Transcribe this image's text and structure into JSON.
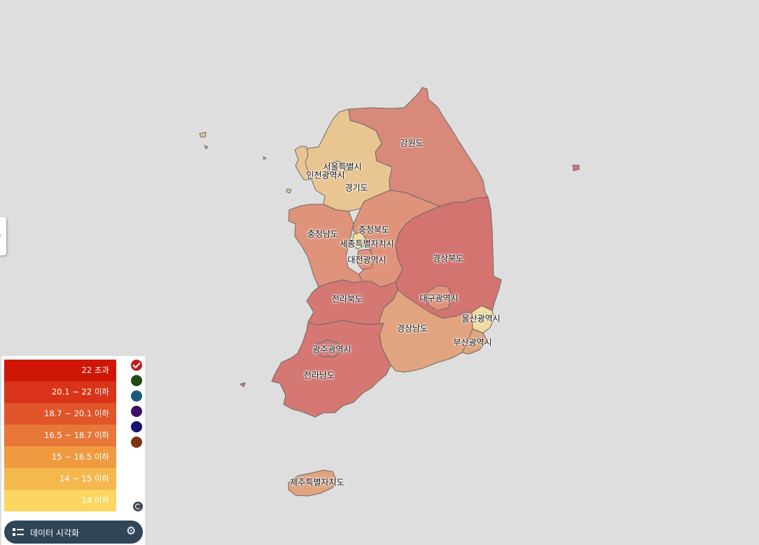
{
  "map": {
    "regions": [
      {
        "id": "gangwon",
        "label": "강원도",
        "color": "#d8897a"
      },
      {
        "id": "gyeonggi",
        "label": "경기도",
        "color": "#e9c592"
      },
      {
        "id": "seoul",
        "label": "서울특별시",
        "color": "#e9c592"
      },
      {
        "id": "incheon",
        "label": "인천광역시",
        "color": "#e9c592"
      },
      {
        "id": "chungbuk",
        "label": "충청북도",
        "color": "#e0937b"
      },
      {
        "id": "chungnam",
        "label": "충청남도",
        "color": "#e0937b"
      },
      {
        "id": "sejong",
        "label": "세종특별자치시",
        "color": "#efdc98"
      },
      {
        "id": "daejeon",
        "label": "대전광역시",
        "color": "#e0937b"
      },
      {
        "id": "gyeongbuk",
        "label": "경상북도",
        "color": "#d47470"
      },
      {
        "id": "daegu",
        "label": "대구광역시",
        "color": "#e0937b"
      },
      {
        "id": "ulsan",
        "label": "울산광역시",
        "color": "#f0dca0"
      },
      {
        "id": "busan",
        "label": "부산광역시",
        "color": "#e1a47f"
      },
      {
        "id": "gyeongnam",
        "label": "경상남도",
        "color": "#e1a47f"
      },
      {
        "id": "jeonbuk",
        "label": "전라북도",
        "color": "#d57873"
      },
      {
        "id": "jeonnam",
        "label": "전라남도",
        "color": "#d57873"
      },
      {
        "id": "gwangju",
        "label": "광주광역시",
        "color": "#d57873"
      },
      {
        "id": "jeju",
        "label": "제주특별자치도",
        "color": "#e1a47f"
      }
    ]
  },
  "side_tab": {
    "arrow": "›"
  },
  "legend": {
    "items": [
      {
        "label": "22 초과",
        "color": "#cf1706"
      },
      {
        "label": "20.1 ~ 22 이하",
        "color": "#d93419"
      },
      {
        "label": "18.7 ~ 20.1 이하",
        "color": "#e0552a"
      },
      {
        "label": "16.5 ~ 18.7 이하",
        "color": "#e8783a"
      },
      {
        "label": "15 ~ 16.5 이하",
        "color": "#f09a40"
      },
      {
        "label": "14 ~ 15 이하",
        "color": "#f5b84e"
      },
      {
        "label": "14 이하",
        "color": "#fbd660"
      }
    ],
    "palette": [
      {
        "color": "#c21d1d",
        "selected": true
      },
      {
        "color": "#1f4a14",
        "selected": false
      },
      {
        "color": "#1a5a7e",
        "selected": false
      },
      {
        "color": "#3c1163",
        "selected": false
      },
      {
        "color": "#15136f",
        "selected": false
      },
      {
        "color": "#7a3510",
        "selected": false
      }
    ]
  },
  "toolbar": {
    "viz_label": "데이터 시각화"
  }
}
